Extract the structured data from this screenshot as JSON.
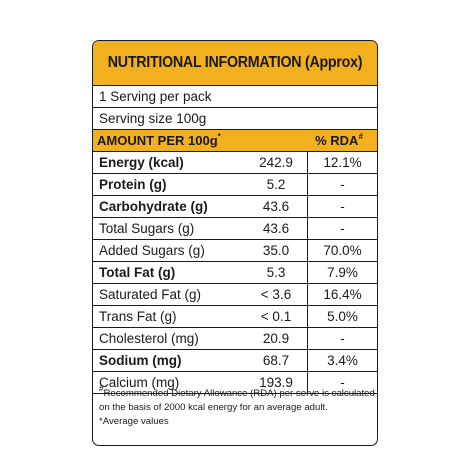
{
  "title": "NUTRITIONAL INFORMATION (Approx)",
  "servings_per_pack": "1 Serving per pack",
  "serving_size": "Serving size 100g",
  "amount_header": "AMOUNT PER 100g",
  "amount_header_mark": "*",
  "rda_header": "% RDA",
  "rda_header_mark": "#",
  "rows": [
    {
      "name": "Energy (kcal)",
      "value": "242.9",
      "rda": "12.1%",
      "bold": true
    },
    {
      "name": "Protein (g)",
      "value": "5.2",
      "rda": "-",
      "bold": true
    },
    {
      "name": "Carbohydrate (g)",
      "value": "43.6",
      "rda": "-",
      "bold": true
    },
    {
      "name": "Total Sugars (g)",
      "value": "43.6",
      "rda": "-",
      "bold": false
    },
    {
      "name": "Added Sugars (g)",
      "value": "35.0",
      "rda": "70.0%",
      "bold": false
    },
    {
      "name": "Total Fat (g)",
      "value": "5.3",
      "rda": "7.9%",
      "bold": true
    },
    {
      "name": "Saturated Fat (g)",
      "value": "< 3.6",
      "rda": "16.4%",
      "bold": false
    },
    {
      "name": "Trans Fat (g)",
      "value": "< 0.1",
      "rda": "5.0%",
      "bold": false
    },
    {
      "name": "Cholesterol (mg)",
      "value": "20.9",
      "rda": "-",
      "bold": false
    },
    {
      "name": "Sodium (mg)",
      "value": "68.7",
      "rda": "3.4%",
      "bold": true
    },
    {
      "name": "Calcium (mg)",
      "value": "193.9",
      "rda": "-",
      "bold": false
    }
  ],
  "footnote": {
    "mark": "#",
    "line1": "Recommended Dietary Allowance (RDA) per serve is calculated",
    "line2": "on the basis  of 2000 kcal energy for an average adult.",
    "line3": "*Average values"
  },
  "colors": {
    "accent": "#f2b01e",
    "border": "#1a1a1a"
  }
}
